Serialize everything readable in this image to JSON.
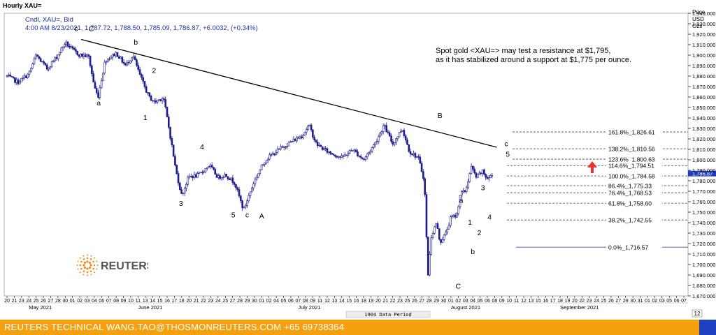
{
  "window": {
    "title": "Hourly XAU="
  },
  "header": {
    "line1": "Cndl, XAU=, Bid",
    "line2": "4:00 AM 8/23/2021, 1,787.72, 1,788.50, 1,785.09, 1,786.87, +6.0032, (+0.34%)"
  },
  "annotation": {
    "line1": "Spot gold <XAU=> may test a resistance at $1,795,",
    "line2": "as it has stabilized around a support at $1,775 per ounce."
  },
  "axis": {
    "label_lines": [
      "Price",
      "USD",
      "Ozs"
    ],
    "last_price_label": "1,786.87"
  },
  "footer": {
    "text": "REUTERS TECHNICAL  WANG.TAO@THOSMONREUTERS.COM  +65 69738364"
  },
  "logo": {
    "text": "REUTERS"
  },
  "data_period": "1904 Data Period",
  "page_indicator": "12",
  "colors": {
    "candle": "#1c1c8c",
    "trendline": "#000000",
    "fib": "#555555",
    "footer": "#f5a10f",
    "arrow": "#e8342b",
    "logo_orange": "#f08a1c"
  },
  "chart_data": {
    "type": "candlestick",
    "instrument": "XAU=",
    "y_axis": {
      "min": 1670,
      "max": 1940,
      "step": 10,
      "label_every": 1,
      "position": "right"
    },
    "x_ticks": {
      "days": [
        "20",
        "21",
        "23",
        "24",
        "25",
        "26",
        "27",
        "28",
        "30",
        "01",
        "02",
        "03",
        "04",
        "06",
        "07",
        "08",
        "09",
        "10",
        "11",
        "13",
        "14",
        "15",
        "16",
        "17",
        "18",
        "20",
        "21",
        "22",
        "23",
        "24",
        "25",
        "27",
        "28",
        "29",
        "30",
        "01",
        "02",
        "04",
        "05",
        "06",
        "07",
        "08",
        "09",
        "11",
        "12",
        "13",
        "14",
        "15",
        "16",
        "18",
        "19",
        "20",
        "21",
        "22",
        "23",
        "25",
        "26",
        "27",
        "28",
        "29",
        "30",
        "01",
        "02",
        "03",
        "04",
        "05",
        "06",
        "08",
        "09",
        "10",
        "11",
        "12",
        "13",
        "15",
        "16",
        "17",
        "18",
        "19",
        "20",
        "22",
        "23",
        "24",
        "25",
        "26",
        "27",
        "29",
        "30",
        "31",
        "01",
        "02",
        "03",
        "05",
        "06",
        "07"
      ],
      "months": [
        {
          "label": "May 2021",
          "at": 3
        },
        {
          "label": "June 2021",
          "at": 18
        },
        {
          "label": "July 2021",
          "at": 40
        },
        {
          "label": "August 2021",
          "at": 61
        },
        {
          "label": "September 2021",
          "at": 76
        }
      ]
    },
    "price_path": [
      [
        0,
        1880
      ],
      [
        1.5,
        1874
      ],
      [
        3,
        1882
      ],
      [
        4,
        1900
      ],
      [
        5.5,
        1887
      ],
      [
        7,
        1900
      ],
      [
        8,
        1912
      ],
      [
        9,
        1905
      ],
      [
        10,
        1900
      ],
      [
        11.2,
        1899
      ],
      [
        12,
        1870
      ],
      [
        12.5,
        1860
      ],
      [
        13.5,
        1895
      ],
      [
        15,
        1902
      ],
      [
        16.3,
        1890
      ],
      [
        17.3,
        1900
      ],
      [
        18.3,
        1880
      ],
      [
        19.5,
        1860
      ],
      [
        20.3,
        1855
      ],
      [
        21.5,
        1860
      ],
      [
        22,
        1840
      ],
      [
        22.5,
        1820
      ],
      [
        23.2,
        1790
      ],
      [
        24,
        1766
      ],
      [
        25,
        1784
      ],
      [
        26.3,
        1785
      ],
      [
        27.8,
        1795
      ],
      [
        29,
        1783
      ],
      [
        30,
        1786
      ],
      [
        31.3,
        1778
      ],
      [
        32.5,
        1752
      ],
      [
        34,
        1780
      ],
      [
        35.5,
        1800
      ],
      [
        37,
        1808
      ],
      [
        38.5,
        1815
      ],
      [
        40.5,
        1823
      ],
      [
        41.5,
        1833
      ],
      [
        42.5,
        1815
      ],
      [
        44,
        1808
      ],
      [
        46,
        1802
      ],
      [
        47.5,
        1810
      ],
      [
        49,
        1800
      ],
      [
        50.5,
        1815
      ],
      [
        51.8,
        1833
      ],
      [
        53,
        1815
      ],
      [
        54.3,
        1830
      ],
      [
        55.3,
        1808
      ],
      [
        56.5,
        1802
      ],
      [
        57.2,
        1784
      ],
      [
        57.5,
        1760
      ],
      [
        57.8,
        1686
      ],
      [
        58.3,
        1727
      ],
      [
        59,
        1740
      ],
      [
        59.5,
        1721
      ],
      [
        60.3,
        1730
      ],
      [
        61,
        1745
      ],
      [
        61.8,
        1747
      ],
      [
        62.3,
        1768
      ],
      [
        63,
        1770
      ],
      [
        63.8,
        1793
      ],
      [
        64.5,
        1783
      ],
      [
        65.3,
        1789
      ],
      [
        66,
        1782
      ],
      [
        66.8,
        1786
      ]
    ],
    "trendline": {
      "from": [
        10.2,
        1915
      ],
      "to": [
        67.3,
        1812
      ]
    },
    "fibonacci": [
      {
        "label": "161.8%",
        "value": "1,826.61",
        "price": 1826.61
      },
      {
        "label": "138.2%",
        "value": "1,810.56",
        "price": 1810.56
      },
      {
        "label": "123.6%",
        "value": "1,800.63",
        "price": 1800.63
      },
      {
        "label": "114.6%",
        "value": "1,794.51",
        "price": 1794.51
      },
      {
        "label": "100.0%",
        "value": "1,784.58",
        "price": 1784.58
      },
      {
        "label": "86.4%",
        "value": "1,775.33",
        "price": 1775.33
      },
      {
        "label": "76.4%",
        "value": "1,768.53",
        "price": 1768.53
      },
      {
        "label": "61.8%",
        "value": "1,758.60",
        "price": 1758.6
      },
      {
        "label": "38.2%",
        "value": "1,742.55",
        "price": 1742.55
      },
      {
        "label": "0.0%",
        "value": "1,716.57",
        "price": 1716.57
      }
    ],
    "wave_labels": [
      {
        "text": "c",
        "x": 9.5,
        "y": 1923
      },
      {
        "text": "C",
        "x": 11.6,
        "y": 1923
      },
      {
        "text": "b",
        "x": 17.7,
        "y": 1910
      },
      {
        "text": "a",
        "x": 12.6,
        "y": 1852
      },
      {
        "text": "2",
        "x": 20.2,
        "y": 1883
      },
      {
        "text": "1",
        "x": 19.0,
        "y": 1838
      },
      {
        "text": "4",
        "x": 26.8,
        "y": 1810
      },
      {
        "text": "3",
        "x": 23.9,
        "y": 1756
      },
      {
        "text": "5",
        "x": 31.1,
        "y": 1745
      },
      {
        "text": "c",
        "x": 33.0,
        "y": 1745
      },
      {
        "text": "A",
        "x": 35.0,
        "y": 1744
      },
      {
        "text": "B",
        "x": 59.5,
        "y": 1840
      },
      {
        "text": "a",
        "x": 62.4,
        "y": 1759
      },
      {
        "text": "3",
        "x": 65.4,
        "y": 1771
      },
      {
        "text": "4",
        "x": 66.3,
        "y": 1743
      },
      {
        "text": "1",
        "x": 63.6,
        "y": 1738
      },
      {
        "text": "2",
        "x": 64.9,
        "y": 1728
      },
      {
        "text": "b",
        "x": 64.0,
        "y": 1710
      },
      {
        "text": "C",
        "x": 62.0,
        "y": 1677
      },
      {
        "text": "c",
        "x": 68.6,
        "y": 1813
      },
      {
        "text": "5",
        "x": 68.8,
        "y": 1803
      }
    ]
  }
}
